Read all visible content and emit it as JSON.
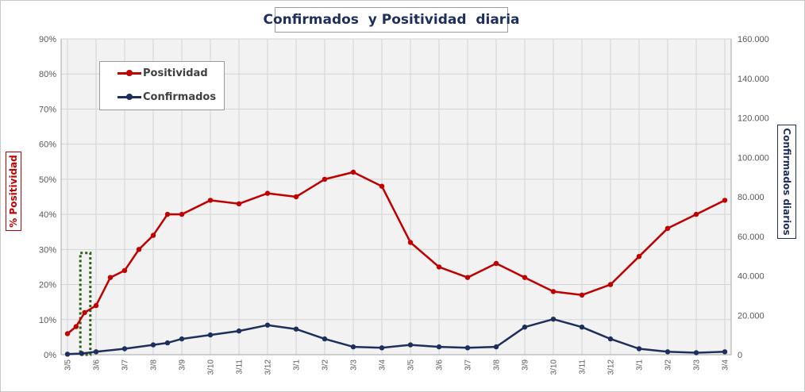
{
  "chart_data": {
    "type": "line",
    "title": "Confirmados  y Positividad  diaria",
    "ylabel_left": "% Positividad",
    "ylabel_right": "Confirmados diarios",
    "y_left_ticks": [
      "0%",
      "10%",
      "20%",
      "30%",
      "40%",
      "50%",
      "60%",
      "70%",
      "80%",
      "90%"
    ],
    "y_left_lim": [
      0,
      90
    ],
    "y_right_ticks": [
      "0",
      "20.000",
      "40.000",
      "60.000",
      "80.000",
      "100.000",
      "120.000",
      "140.000",
      "160.000"
    ],
    "y_right_lim": [
      0,
      160000
    ],
    "x_ticks": [
      "3/5",
      "3/6",
      "3/7",
      "3/8",
      "3/9",
      "3/10",
      "3/11",
      "3/12",
      "3/1",
      "3/2",
      "3/3",
      "3/4",
      "3/5",
      "3/6",
      "3/7",
      "3/8",
      "3/9",
      "3/10",
      "3/11",
      "3/12",
      "3/1",
      "3/2",
      "3/3",
      "3/4"
    ],
    "grid": true,
    "legend_position": "top-left",
    "series": [
      {
        "name": "Positividad",
        "color": "#c00000",
        "axis": "left",
        "x": [
          0,
          0.3,
          0.6,
          1,
          1.5,
          2,
          2.5,
          3,
          3.5,
          4,
          5,
          6,
          7,
          8,
          9,
          10,
          11,
          12,
          13,
          14,
          15,
          16,
          17,
          18,
          19,
          20,
          21,
          22,
          23
        ],
        "values": [
          6,
          8,
          12,
          14,
          22,
          24,
          30,
          34,
          40,
          40,
          44,
          43,
          46,
          45,
          50,
          52,
          48,
          32,
          25,
          22,
          26,
          22,
          18,
          17,
          20,
          28,
          36,
          40,
          44
        ]
      },
      {
        "name": "Confirmados",
        "color": "#1f2f5c",
        "axis": "right",
        "x": [
          0,
          0.5,
          1,
          2,
          3,
          3.5,
          4,
          5,
          6,
          7,
          8,
          9,
          10,
          11,
          12,
          13,
          14,
          15,
          16,
          17,
          18,
          19,
          20,
          21,
          22,
          23
        ],
        "values": [
          300,
          600,
          1500,
          3000,
          5000,
          6000,
          8000,
          10000,
          12000,
          15000,
          13000,
          8000,
          4000,
          3500,
          5000,
          4000,
          3500,
          4000,
          14000,
          18000,
          14000,
          8000,
          3000,
          1500,
          1000,
          1500
        ]
      }
    ],
    "annotation": "dashed-green-box"
  }
}
